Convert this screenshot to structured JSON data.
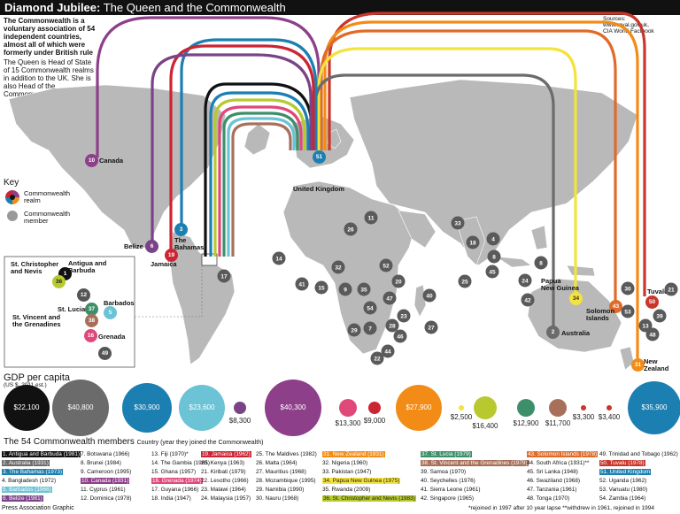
{
  "header": {
    "title_bold": "Diamond Jubilee:",
    "title_rest": " The Queen and the Commonwealth"
  },
  "intro": {
    "p1": [
      "The Commonwealth is a",
      "voluntary association of 54",
      "independent countries,",
      "almost all of which were",
      "formerly under British rule"
    ],
    "p2": [
      "The Queen is Head of State",
      "of 15 Commonwealth realms",
      "in addition to the UK. She is",
      "also Head of the",
      "Commonwealth itself"
    ]
  },
  "sources": [
    "Sources:",
    "www.royal.gov.uk,",
    "CIA World Factbook"
  ],
  "key": {
    "title": "Key",
    "realm": [
      "Commonwealth",
      "realm"
    ],
    "member": [
      "Commonwealth",
      "member"
    ]
  },
  "colors": {
    "canada": "#8e3f8a",
    "bahamas": "#1c7fb1",
    "jamaica": "#cc2433",
    "belize": "#7b4387",
    "barbados": "#6cc3d5",
    "grenada": "#e0487a",
    "stlucia": "#3d8f6a",
    "svg": "#a8705a",
    "antigua": "#111111",
    "stkitts": "#b8c92f",
    "png": "#f4e33d",
    "solomon": "#e06b29",
    "tuvalu": "#c9362b",
    "nz": "#f28c17",
    "australia": "#6b6b6b",
    "uk": "#1c7fb1"
  },
  "map_labels": {
    "canada": "Canada",
    "belize": "Belize",
    "bahamas": [
      "The",
      "Bahamas"
    ],
    "jamaica": "Jamaica",
    "uk": "United Kingdom",
    "png": [
      "Papua",
      "New Guinea"
    ],
    "solomon": [
      "Solomon",
      "Islands"
    ],
    "tuvalu": "Tuvalu",
    "australia": "Australia",
    "nz": [
      "New",
      "Zealand"
    ],
    "stkitts": [
      "St. Christopher",
      "and Nevis"
    ],
    "antigua": [
      "Antigua and",
      "Barbuda"
    ],
    "stlucia": "St. Lucia",
    "barbados": "Barbados",
    "svg": [
      "St. Vincent and",
      "the Grenadines"
    ],
    "grenada": "Grenada"
  },
  "gdp": {
    "title": "GDP per capita",
    "subtitle": "(US $, 2011 est.)",
    "values": [
      "$22,100",
      "$40,800",
      "$30,900",
      "$23,600",
      "$8,300",
      "$40,300",
      "$13,300",
      "$9,000",
      "$27,900",
      "$2,500",
      "$16,400",
      "$12,900",
      "$11,700",
      "$3,300",
      "$3,400",
      "$35,900"
    ]
  },
  "members": {
    "title": "The 54 Commonwealth members",
    "subtitle": "Country (year they joined the Commonwealth)",
    "col1": [
      "1. Antigua and Barbuda (1981)",
      "2. Australia (1931)",
      "3. The Bahamas (1973)",
      "4. Bangladesh (1972)",
      "5. Barbados (1966)",
      "6. Belize (1981)"
    ],
    "col2": [
      "7. Botswana (1966)",
      "8. Brunei (1984)",
      "9. Cameroon (1995)",
      "10. Canada (1931)",
      "11. Cyprus (1961)",
      "12. Dominica (1978)"
    ],
    "col3": [
      "13. Fiji (1970)*",
      "14. The Gambia (1965)",
      "15. Ghana (1957)",
      "16. Grenada (1974)",
      "17. Guyana (1966)",
      "18. India (1947)"
    ],
    "col4": [
      "19. Jamaica (1962)",
      "20. Kenya (1963)",
      "21. Kiribati (1979)",
      "22. Lesotho (1966)",
      "23. Malawi (1964)",
      "24. Malaysia (1957)"
    ],
    "col5": [
      "25. The Maldives (1982)",
      "26. Malta (1964)",
      "27. Mauritius (1968)",
      "28. Mozambique (1995)",
      "29. Namibia (1990)",
      "30. Nauru (1968)"
    ],
    "col6": [
      "31. New Zealand (1931)",
      "32. Nigeria (1960)",
      "33. Pakistan (1947)",
      "34. Papua New Guinea (1975)",
      "35. Rwanda (2009)",
      "36. St. Christopher and Nevis (1983)"
    ],
    "col7": [
      "37. St. Lucia (1979)",
      "38. St. Vincent and the Grenadines (1979)",
      "39. Samoa (1970)",
      "40. Seychelles (1976)",
      "41. Sierra Leone (1961)",
      "42. Singapore (1965)"
    ],
    "col8": [
      "43. Solomon Islands (1978)",
      "44. South Africa (1931)**",
      "45. Sri Lanka (1948)",
      "46. Swaziland (1968)",
      "47. Tanzania (1961)",
      "48. Tonga (1970)"
    ],
    "col9": [
      "49. Trinidad and Tobago (1962)",
      "50. Tuvalu (1978)",
      "51. United Kingdom",
      "52. Uganda (1962)",
      "53. Vanuatu (1980)",
      "54. Zambia (1964)"
    ]
  },
  "footer": {
    "left": "Press Association Graphic",
    "right": "*rejoined in 1997 after 10 year lapse **withdrew in 1961, rejoined in 1994"
  }
}
